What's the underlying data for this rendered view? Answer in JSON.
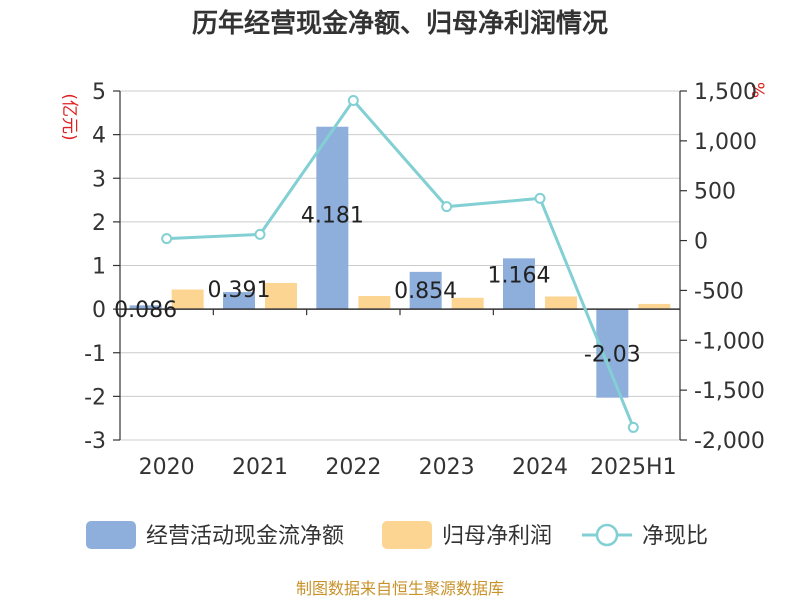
{
  "title": "历年经营现金净额、归母净利润情况",
  "source": "制图数据来自恒生聚源数据库",
  "chart_data": {
    "type": "bar",
    "categories": [
      "2020",
      "2021",
      "2022",
      "2023",
      "2024",
      "2025H1"
    ],
    "series": [
      {
        "name": "经营活动现金流净额",
        "kind": "bar",
        "axis": "left",
        "color": "#8eaedb",
        "values": [
          0.086,
          0.391,
          4.181,
          0.854,
          1.164,
          -2.03
        ],
        "labels": [
          "0.086",
          "0.391",
          "4.181",
          "0.854",
          "1.164",
          "-2.03"
        ]
      },
      {
        "name": "归母净利润",
        "kind": "bar",
        "axis": "left",
        "color": "#fdd592",
        "values": [
          0.45,
          0.6,
          0.3,
          0.26,
          0.29,
          0.12
        ]
      },
      {
        "name": "净现比",
        "kind": "line",
        "axis": "right",
        "color": "#82d0d4",
        "values": [
          20,
          62,
          1405,
          340,
          423,
          -1874
        ]
      }
    ],
    "y_left": {
      "unit": "(亿元)",
      "ylim": [
        -3,
        5
      ],
      "ticks": [
        "5",
        "4",
        "3",
        "2",
        "1",
        "0",
        "-1",
        "-2",
        "-3"
      ]
    },
    "y_right": {
      "unit": "%",
      "ylim": [
        -2000,
        1500
      ],
      "ticks": [
        "1,500",
        "1,000",
        "500",
        "0",
        "-500",
        "-1,000",
        "-1,500",
        "-2,000"
      ]
    },
    "grid": true,
    "legend_position": "bottom"
  }
}
